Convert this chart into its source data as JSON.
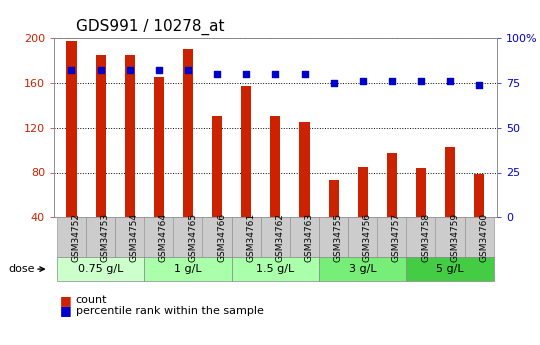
{
  "title": "GDS991 / 10278_at",
  "samples": [
    "GSM34752",
    "GSM34753",
    "GSM34754",
    "GSM34764",
    "GSM34765",
    "GSM34766",
    "GSM34761",
    "GSM34762",
    "GSM34763",
    "GSM34755",
    "GSM34756",
    "GSM34757",
    "GSM34758",
    "GSM34759",
    "GSM34760"
  ],
  "counts": [
    197,
    185,
    185,
    165,
    190,
    130,
    157,
    130,
    125,
    73,
    85,
    97,
    84,
    103,
    79
  ],
  "percentiles": [
    82,
    82,
    82,
    82,
    82,
    80,
    80,
    80,
    80,
    75,
    76,
    76,
    76,
    76,
    74
  ],
  "bar_color": "#cc2200",
  "dot_color": "#0000cc",
  "ylim_left": [
    40,
    200
  ],
  "ylim_right": [
    0,
    100
  ],
  "yticks_left": [
    40,
    80,
    120,
    160,
    200
  ],
  "yticks_right": [
    0,
    25,
    50,
    75,
    100
  ],
  "ytick_labels_right": [
    "0",
    "25",
    "50",
    "75",
    "100%"
  ],
  "doses": [
    {
      "label": "0.75 g/L",
      "indices": [
        0,
        1,
        2
      ],
      "color": "#ccffcc"
    },
    {
      "label": "1 g/L",
      "indices": [
        3,
        4,
        5
      ],
      "color": "#aaffaa"
    },
    {
      "label": "1.5 g/L",
      "indices": [
        6,
        7,
        8
      ],
      "color": "#aaffaa"
    },
    {
      "label": "3 g/L",
      "indices": [
        9,
        10,
        11
      ],
      "color": "#77ee77"
    },
    {
      "label": "5 g/L",
      "indices": [
        12,
        13,
        14
      ],
      "color": "#44cc44"
    }
  ],
  "bar_width": 0.35,
  "background_color": "#ffffff",
  "plot_bg_color": "#ffffff",
  "grid_color": "#000000",
  "title_fontsize": 11,
  "axis_color_left": "#cc2200",
  "axis_color_right": "#0000cc",
  "tick_box_color": "#cccccc",
  "dot_size": 20
}
